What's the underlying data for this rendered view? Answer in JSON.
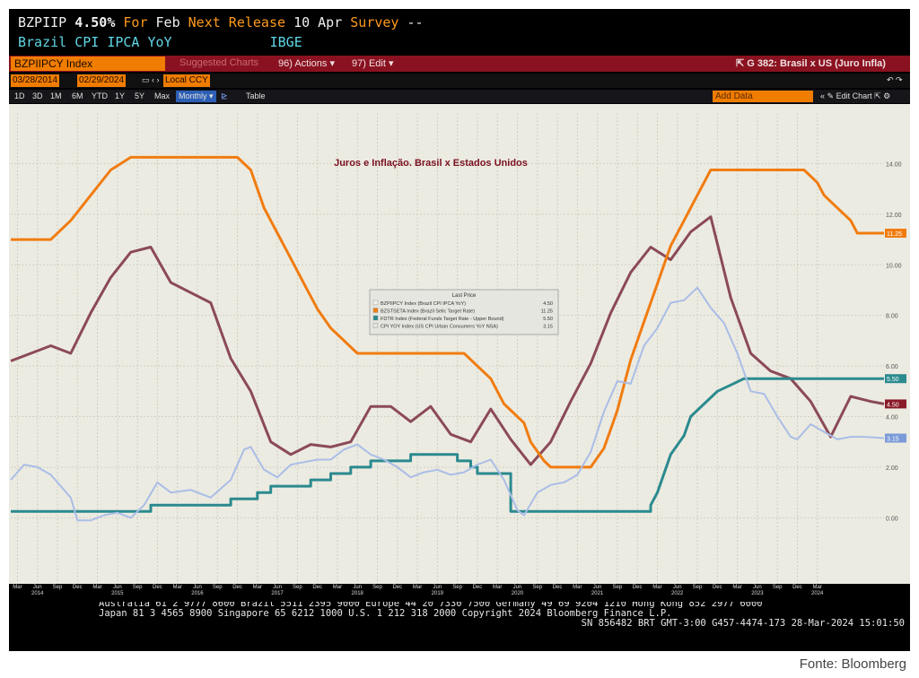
{
  "header": {
    "ticker": "BZPIIP",
    "value": "4.50%",
    "for_label": "For",
    "period": "Feb",
    "next_label": "Next Release",
    "next_date": "10 Apr",
    "survey_label": "Survey",
    "survey_value": "--",
    "description": "Brazil CPI IPCA YoY",
    "source": "IBGE"
  },
  "toolbar": {
    "security": "BZPIIPCY Index",
    "suggested": "Suggested Charts",
    "actions": "96) Actions",
    "edit": "97) Edit",
    "chart_title": "G 382: Brasil x US (Juro Infla)"
  },
  "dates": {
    "start": "03/28/2014",
    "end": "02/29/2024",
    "currency": "Local CCY"
  },
  "periods": [
    "1D",
    "3D",
    "1M",
    "6M",
    "YTD",
    "1Y",
    "5Y",
    "Max"
  ],
  "frequency": "Monthly",
  "table_label": "Table",
  "add_data": "Add Data",
  "edit_chart": "Edit Chart",
  "legend_title": "Last Price",
  "footer": {
    "line1": "Australia 61 2 9777 8600 Brazil 5511 2395 9000 Europe 44 20 7330 7500 Germany 49 69 9204 1210 Hong Kong 852 2977 6000",
    "line2": "Japan 81 3 4565 8900       Singapore 65 6212 1000       U.S. 1 212 318 2000           Copyright 2024 Bloomberg Finance L.P.",
    "line3": "SN 856482 BRT  GMT-3:00 G457-4474-173 28-Mar-2024 15:01:50"
  },
  "source_note": "Fonte: Bloomberg",
  "chart_data": {
    "type": "line",
    "title": "Juros e Inflação.  Brasil x Estados Unidos",
    "ylim": [
      -3,
      16
    ],
    "yticks": [
      "0.00",
      "2.00",
      "4.00",
      "6.00",
      "8.00",
      "10.00",
      "12.00",
      "14.00"
    ],
    "xlabels": [
      {
        "m": "Mar",
        "y": ""
      },
      {
        "m": "Jun",
        "y": "2014"
      },
      {
        "m": "Sep",
        "y": ""
      },
      {
        "m": "Dec",
        "y": ""
      },
      {
        "m": "Mar",
        "y": ""
      },
      {
        "m": "Jun",
        "y": "2015"
      },
      {
        "m": "Sep",
        "y": ""
      },
      {
        "m": "Dec",
        "y": ""
      },
      {
        "m": "Mar",
        "y": ""
      },
      {
        "m": "Jun",
        "y": "2016"
      },
      {
        "m": "Sep",
        "y": ""
      },
      {
        "m": "Dec",
        "y": ""
      },
      {
        "m": "Mar",
        "y": ""
      },
      {
        "m": "Jun",
        "y": "2017"
      },
      {
        "m": "Sep",
        "y": ""
      },
      {
        "m": "Dec",
        "y": ""
      },
      {
        "m": "Mar",
        "y": ""
      },
      {
        "m": "Jun",
        "y": "2018"
      },
      {
        "m": "Sep",
        "y": ""
      },
      {
        "m": "Dec",
        "y": ""
      },
      {
        "m": "Mar",
        "y": ""
      },
      {
        "m": "Jun",
        "y": "2019"
      },
      {
        "m": "Sep",
        "y": ""
      },
      {
        "m": "Dec",
        "y": ""
      },
      {
        "m": "Mar",
        "y": ""
      },
      {
        "m": "Jun",
        "y": "2020"
      },
      {
        "m": "Sep",
        "y": ""
      },
      {
        "m": "Dec",
        "y": ""
      },
      {
        "m": "Mar",
        "y": ""
      },
      {
        "m": "Jun",
        "y": "2021"
      },
      {
        "m": "Sep",
        "y": ""
      },
      {
        "m": "Dec",
        "y": ""
      },
      {
        "m": "Mar",
        "y": ""
      },
      {
        "m": "Jun",
        "y": "2022"
      },
      {
        "m": "Sep",
        "y": ""
      },
      {
        "m": "Dec",
        "y": ""
      },
      {
        "m": "Mar",
        "y": ""
      },
      {
        "m": "Jun",
        "y": "2023"
      },
      {
        "m": "Sep",
        "y": ""
      },
      {
        "m": "Dec",
        "y": ""
      },
      {
        "m": "Mar",
        "y": "2024"
      }
    ],
    "series": [
      {
        "name": "BZPIIPCY Index (Brazil CPI IPCA YoY)",
        "last": "4.50",
        "color": "#8b4a56",
        "width": 3,
        "points": [
          [
            0,
            6.2
          ],
          [
            3,
            6.5
          ],
          [
            6,
            6.8
          ],
          [
            9,
            6.5
          ],
          [
            12,
            8.1
          ],
          [
            15,
            9.5
          ],
          [
            18,
            10.5
          ],
          [
            21,
            10.7
          ],
          [
            24,
            9.3
          ],
          [
            27,
            8.9
          ],
          [
            30,
            8.5
          ],
          [
            33,
            6.3
          ],
          [
            36,
            5.0
          ],
          [
            39,
            3.0
          ],
          [
            42,
            2.5
          ],
          [
            45,
            2.9
          ],
          [
            48,
            2.8
          ],
          [
            51,
            3.0
          ],
          [
            54,
            4.4
          ],
          [
            57,
            4.4
          ],
          [
            60,
            3.8
          ],
          [
            63,
            4.4
          ],
          [
            66,
            3.3
          ],
          [
            69,
            3.0
          ],
          [
            72,
            4.3
          ],
          [
            75,
            3.1
          ],
          [
            78,
            2.1
          ],
          [
            81,
            3.0
          ],
          [
            84,
            4.6
          ],
          [
            87,
            6.1
          ],
          [
            90,
            8.1
          ],
          [
            93,
            9.7
          ],
          [
            96,
            10.7
          ],
          [
            99,
            10.2
          ],
          [
            102,
            11.3
          ],
          [
            105,
            11.9
          ],
          [
            108,
            8.7
          ],
          [
            111,
            6.5
          ],
          [
            114,
            5.8
          ],
          [
            117,
            5.5
          ],
          [
            120,
            4.6
          ],
          [
            123,
            3.2
          ],
          [
            126,
            4.8
          ],
          [
            129,
            4.6
          ],
          [
            131,
            4.5
          ]
        ]
      },
      {
        "name": "BZSTSETA Index (Brazil Selic Target Rate)",
        "last": "11.25",
        "color": "#f07c10",
        "width": 3,
        "points": [
          [
            0,
            11.0
          ],
          [
            6,
            11.0
          ],
          [
            9,
            11.75
          ],
          [
            12,
            12.75
          ],
          [
            15,
            13.75
          ],
          [
            18,
            14.25
          ],
          [
            34,
            14.25
          ],
          [
            36,
            13.75
          ],
          [
            38,
            12.25
          ],
          [
            40,
            11.25
          ],
          [
            42,
            10.25
          ],
          [
            44,
            9.25
          ],
          [
            46,
            8.25
          ],
          [
            48,
            7.5
          ],
          [
            50,
            7.0
          ],
          [
            52,
            6.5
          ],
          [
            68,
            6.5
          ],
          [
            70,
            6.0
          ],
          [
            72,
            5.5
          ],
          [
            73,
            5.0
          ],
          [
            74,
            4.5
          ],
          [
            75,
            4.25
          ],
          [
            77,
            3.75
          ],
          [
            78,
            3.0
          ],
          [
            80,
            2.25
          ],
          [
            81,
            2.0
          ],
          [
            87,
            2.0
          ],
          [
            89,
            2.75
          ],
          [
            90,
            3.5
          ],
          [
            91,
            4.25
          ],
          [
            92,
            5.25
          ],
          [
            93,
            6.25
          ],
          [
            95,
            7.75
          ],
          [
            97,
            9.25
          ],
          [
            99,
            10.75
          ],
          [
            101,
            11.75
          ],
          [
            103,
            12.75
          ],
          [
            104,
            13.25
          ],
          [
            105,
            13.75
          ],
          [
            119,
            13.75
          ],
          [
            121,
            13.25
          ],
          [
            122,
            12.75
          ],
          [
            124,
            12.25
          ],
          [
            126,
            11.75
          ],
          [
            127,
            11.25
          ],
          [
            131,
            11.25
          ]
        ]
      },
      {
        "name": "FDTR Index (Federal Funds Target Rate - Upper Bound)",
        "last": "5.50",
        "color": "#2b8a8e",
        "width": 3,
        "points": [
          [
            0,
            0.25
          ],
          [
            21,
            0.25
          ],
          [
            21,
            0.5
          ],
          [
            33,
            0.5
          ],
          [
            33,
            0.75
          ],
          [
            37,
            0.75
          ],
          [
            37,
            1.0
          ],
          [
            39,
            1.0
          ],
          [
            39,
            1.25
          ],
          [
            45,
            1.25
          ],
          [
            45,
            1.5
          ],
          [
            48,
            1.5
          ],
          [
            48,
            1.75
          ],
          [
            51,
            1.75
          ],
          [
            51,
            2.0
          ],
          [
            54,
            2.0
          ],
          [
            54,
            2.25
          ],
          [
            60,
            2.25
          ],
          [
            60,
            2.5
          ],
          [
            67,
            2.5
          ],
          [
            67,
            2.25
          ],
          [
            69,
            2.25
          ],
          [
            69,
            2.0
          ],
          [
            70,
            2.0
          ],
          [
            70,
            1.75
          ],
          [
            75,
            1.75
          ],
          [
            75,
            0.25
          ],
          [
            96,
            0.25
          ],
          [
            96,
            0.5
          ],
          [
            97,
            1.0
          ],
          [
            98,
            1.75
          ],
          [
            99,
            2.5
          ],
          [
            101,
            3.25
          ],
          [
            102,
            4.0
          ],
          [
            104,
            4.5
          ],
          [
            105,
            4.75
          ],
          [
            106,
            5.0
          ],
          [
            108,
            5.25
          ],
          [
            110,
            5.5
          ],
          [
            131,
            5.5
          ]
        ]
      },
      {
        "name": "CPI YOY Index (US CPI Urban Consumers YoY NSA)",
        "last": "3.15",
        "color": "#a9bde6",
        "width": 2,
        "points": [
          [
            0,
            1.5
          ],
          [
            2,
            2.1
          ],
          [
            4,
            2.0
          ],
          [
            6,
            1.7
          ],
          [
            9,
            0.8
          ],
          [
            10,
            -0.1
          ],
          [
            12,
            -0.1
          ],
          [
            14,
            0.1
          ],
          [
            16,
            0.2
          ],
          [
            18,
            0.0
          ],
          [
            20,
            0.5
          ],
          [
            22,
            1.4
          ],
          [
            24,
            1.0
          ],
          [
            27,
            1.1
          ],
          [
            30,
            0.8
          ],
          [
            33,
            1.5
          ],
          [
            35,
            2.7
          ],
          [
            36,
            2.8
          ],
          [
            38,
            1.9
          ],
          [
            40,
            1.6
          ],
          [
            42,
            2.1
          ],
          [
            44,
            2.2
          ],
          [
            46,
            2.3
          ],
          [
            48,
            2.3
          ],
          [
            50,
            2.7
          ],
          [
            52,
            2.9
          ],
          [
            54,
            2.5
          ],
          [
            56,
            2.3
          ],
          [
            58,
            2.0
          ],
          [
            60,
            1.6
          ],
          [
            62,
            1.8
          ],
          [
            64,
            1.9
          ],
          [
            66,
            1.7
          ],
          [
            68,
            1.8
          ],
          [
            70,
            2.1
          ],
          [
            72,
            2.3
          ],
          [
            74,
            1.5
          ],
          [
            76,
            0.3
          ],
          [
            77,
            0.1
          ],
          [
            79,
            1.0
          ],
          [
            81,
            1.3
          ],
          [
            83,
            1.4
          ],
          [
            85,
            1.7
          ],
          [
            87,
            2.6
          ],
          [
            89,
            4.2
          ],
          [
            91,
            5.4
          ],
          [
            93,
            5.3
          ],
          [
            95,
            6.8
          ],
          [
            97,
            7.5
          ],
          [
            99,
            8.5
          ],
          [
            101,
            8.6
          ],
          [
            103,
            9.1
          ],
          [
            105,
            8.3
          ],
          [
            107,
            7.7
          ],
          [
            109,
            6.5
          ],
          [
            111,
            5.0
          ],
          [
            113,
            4.9
          ],
          [
            115,
            4.0
          ],
          [
            117,
            3.2
          ],
          [
            118,
            3.1
          ],
          [
            120,
            3.7
          ],
          [
            122,
            3.4
          ],
          [
            124,
            3.1
          ],
          [
            126,
            3.2
          ],
          [
            128,
            3.2
          ],
          [
            131,
            3.15
          ]
        ]
      }
    ]
  }
}
